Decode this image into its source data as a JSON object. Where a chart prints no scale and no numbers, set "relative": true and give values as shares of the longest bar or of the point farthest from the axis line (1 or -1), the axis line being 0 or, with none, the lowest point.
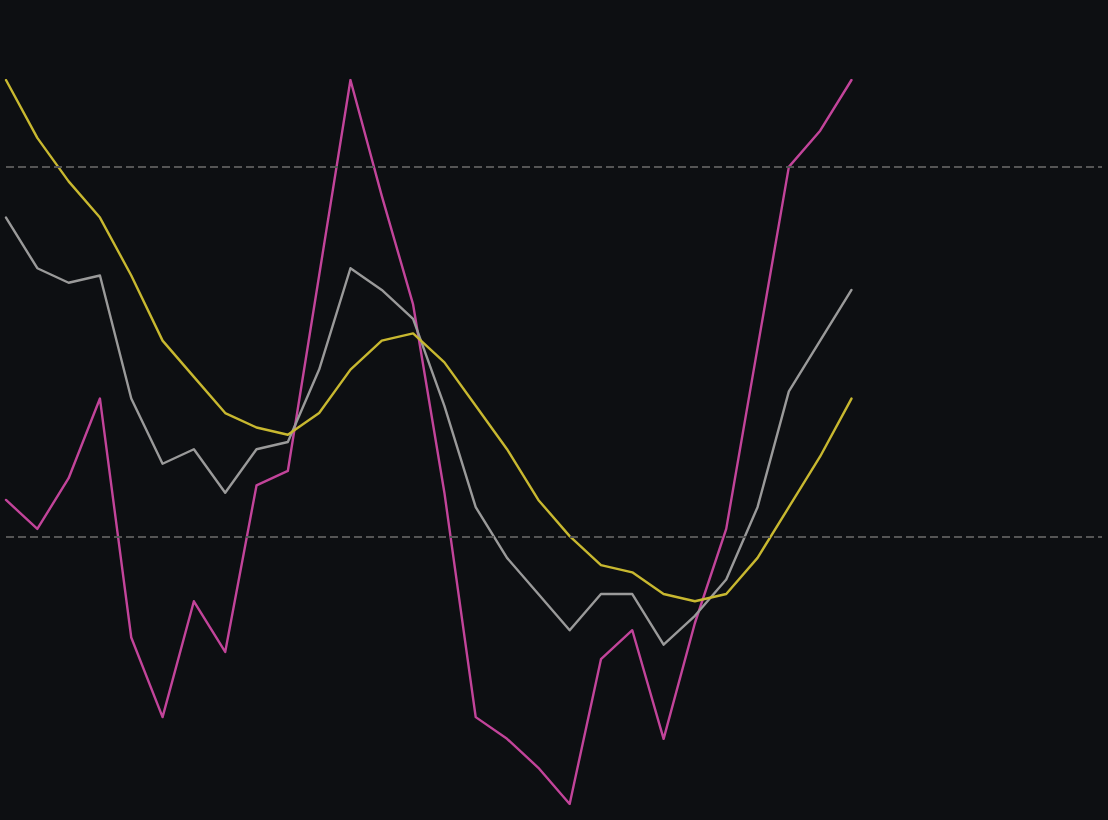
{
  "chart_data": {
    "type": "line",
    "relative": true,
    "categories": [
      null,
      null,
      null,
      null,
      null,
      null,
      null,
      null,
      null,
      null,
      null,
      null,
      null,
      null,
      null,
      null,
      null,
      null,
      null,
      null,
      null,
      null,
      null,
      null,
      null,
      null,
      null,
      null,
      null,
      null,
      null,
      null,
      null,
      null,
      null,
      null
    ],
    "series": [
      {
        "color": "#c2449a",
        "values": [
          0.42,
          0.38,
          0.45,
          0.56,
          0.23,
          0.12,
          0.28,
          0.21,
          0.44,
          0.46,
          0.73,
          1.0,
          0.84,
          0.69,
          0.43,
          0.12,
          0.09,
          0.05,
          0,
          0.2,
          0.24,
          0.09,
          0.25,
          0.38,
          0.63,
          0.88,
          0.93,
          1.0,
          null,
          null,
          null,
          null,
          null,
          null,
          null,
          null
        ]
      },
      {
        "color": "#9a9a9a",
        "values": [
          0.81,
          0.74,
          0.72,
          0.73,
          0.56,
          0.47,
          0.49,
          0.43,
          0.49,
          0.5,
          0.6,
          0.74,
          0.71,
          0.67,
          0.55,
          0.41,
          0.34,
          0.29,
          0.24,
          0.29,
          0.29,
          0.22,
          0.26,
          0.31,
          0.41,
          0.57,
          0.64,
          0.71,
          null,
          null,
          null,
          null,
          null,
          null,
          null,
          null
        ]
      },
      {
        "color": "#c8b830",
        "values": [
          1.0,
          0.92,
          0.86,
          0.81,
          0.73,
          0.64,
          0.59,
          0.54,
          0.52,
          0.51,
          0.54,
          0.6,
          0.64,
          0.65,
          0.61,
          0.55,
          0.49,
          0.42,
          0.37,
          0.33,
          0.32,
          0.29,
          0.28,
          0.29,
          0.34,
          0.41,
          0.48,
          0.56,
          null,
          null,
          null,
          null,
          null,
          null,
          null,
          null
        ]
      }
    ],
    "ref_lines": [
      {
        "axis": "y",
        "value": 0.88,
        "color": "#555555",
        "line_style": "dashed"
      },
      {
        "axis": "y",
        "value": 0.37,
        "color": "#555555",
        "line_style": "dashed"
      }
    ],
    "marker": "none",
    "line_style": "solid"
  }
}
